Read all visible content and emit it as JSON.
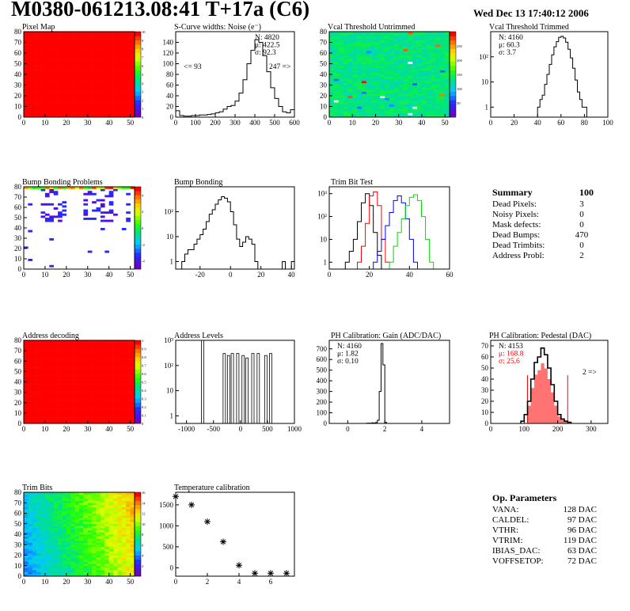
{
  "header": {
    "title": "M0380-061213.08:41 T+17a (C6)",
    "date": "Wed Dec 13 17:40:12 2006"
  },
  "summary": {
    "title": "Summary",
    "value": "100",
    "rows": [
      {
        "label": "Dead Pixels:",
        "value": "3"
      },
      {
        "label": "Noisy Pixels:",
        "value": "0"
      },
      {
        "label": "Mask defects:",
        "value": "0"
      },
      {
        "label": "Dead Bumps:",
        "value": "470"
      },
      {
        "label": "Dead Trimbits:",
        "value": "0"
      },
      {
        "label": "Address Probl:",
        "value": "2"
      }
    ]
  },
  "op_params": {
    "title": "Op. Parameters",
    "rows": [
      {
        "label": "VANA:",
        "value": "128 DAC"
      },
      {
        "label": "CALDEL:",
        "value": "97 DAC"
      },
      {
        "label": "VTHR:",
        "value": "96 DAC"
      },
      {
        "label": "VTRIM:",
        "value": "119 DAC"
      },
      {
        "label": "IBIAS_DAC:",
        "value": "63 DAC"
      },
      {
        "label": "VOFFSETOP:",
        "value": "72 DAC"
      }
    ]
  },
  "chart_data": [
    {
      "id": "pixel_map",
      "type": "heatmap",
      "title": "Pixel Map",
      "pattern": "uniform-max",
      "xlim": [
        0,
        52
      ],
      "ylim": [
        0,
        80
      ],
      "xticks": [
        0,
        10,
        20,
        30,
        40,
        50
      ],
      "yticks": [
        0,
        10,
        20,
        30,
        40,
        50,
        60,
        70,
        80
      ],
      "zlim": [
        0,
        10
      ],
      "zticks": [
        0,
        1,
        2,
        3,
        4,
        5,
        6,
        7,
        8,
        9,
        10
      ]
    },
    {
      "id": "s_curve",
      "type": "hist",
      "title": "S-Curve widths: Noise (e⁻)",
      "xlim": [
        0,
        600
      ],
      "ylim": [
        0,
        160
      ],
      "xticks": [
        0,
        100,
        200,
        300,
        400,
        500,
        600
      ],
      "yticks": [
        0,
        20,
        40,
        60,
        80,
        100,
        120,
        140
      ],
      "series": [
        {
          "name": "noise",
          "color": "#000000",
          "start": 0,
          "width": 20,
          "values": [
            12,
            3,
            2,
            2,
            3,
            3,
            4,
            4,
            5,
            6,
            8,
            10,
            15,
            20,
            22,
            30,
            45,
            70,
            100,
            125,
            145,
            140,
            115,
            85,
            55,
            35,
            20,
            10,
            8,
            14
          ]
        }
      ],
      "stats": {
        "pos": "top-right",
        "lines": [
          "N: 4820",
          "μ: 422.5",
          "σ: 92.3"
        ]
      },
      "underflow": "<= 93",
      "overflow": "247 =>"
    },
    {
      "id": "vcal_untrimmed",
      "type": "heatmap",
      "title": "Vcal Threshold Untrimmed",
      "pattern": "noisy-mid",
      "xlim": [
        0,
        52
      ],
      "ylim": [
        0,
        80
      ],
      "xticks": [
        0,
        10,
        20,
        30,
        40,
        50
      ],
      "yticks": [
        0,
        10,
        20,
        30,
        40,
        50,
        60,
        70,
        80
      ],
      "zlim": [
        0,
        300
      ],
      "zticks": [
        50,
        100,
        150,
        200,
        250
      ]
    },
    {
      "id": "vcal_trimmed",
      "type": "hist",
      "title": "Vcal Threshold Trimmed",
      "logy": true,
      "xlim": [
        0,
        100
      ],
      "ylim": [
        0.4,
        1000
      ],
      "xticks": [
        0,
        20,
        40,
        60,
        80,
        100
      ],
      "yticks": [
        1,
        10,
        100
      ],
      "yticklabels": [
        "1",
        "10",
        "10²"
      ],
      "series": [
        {
          "name": "vcal",
          "color": "#000000",
          "start": 40,
          "width": 2,
          "values": [
            1,
            2,
            3,
            8,
            20,
            50,
            120,
            250,
            400,
            600,
            650,
            560,
            380,
            200,
            90,
            35,
            12,
            4,
            2,
            1,
            1
          ]
        }
      ],
      "stats": {
        "pos": "top-left",
        "lines": [
          "N: 4160",
          "μ: 60.3",
          "σ:  3.7"
        ]
      }
    },
    {
      "id": "bump_problems",
      "type": "heatmap",
      "title": "Bump Bonding Problems",
      "pattern": "sparse",
      "xlim": [
        0,
        52
      ],
      "ylim": [
        0,
        80
      ],
      "xticks": [
        0,
        10,
        20,
        30,
        40,
        50
      ],
      "yticks": [
        0,
        10,
        20,
        30,
        40,
        50,
        60,
        70,
        80
      ],
      "zlim": [
        -5,
        5
      ],
      "zticks": [
        -4,
        -2,
        0,
        2,
        4
      ]
    },
    {
      "id": "bump_bonding",
      "type": "hist",
      "title": "Bump Bonding",
      "logy": true,
      "xlim": [
        -36,
        42
      ],
      "ylim": [
        0.5,
        1000
      ],
      "xticks": [
        -20,
        0,
        20,
        40
      ],
      "yticks": [
        1,
        10,
        100
      ],
      "yticklabels": [
        "1",
        "10",
        "10²"
      ],
      "series": [
        {
          "name": "bump",
          "color": "#000000",
          "start": -34,
          "width": 2,
          "values": [
            0,
            1,
            2,
            3,
            3,
            5,
            8,
            12,
            20,
            40,
            80,
            120,
            200,
            300,
            400,
            350,
            250,
            100,
            30,
            8,
            4,
            6,
            10,
            8,
            5,
            1,
            0,
            0,
            0,
            0,
            0,
            0,
            0,
            0,
            1,
            0,
            0,
            1
          ]
        }
      ]
    },
    {
      "id": "trim_bit_test",
      "type": "hist",
      "title": "Trim Bit Test",
      "logy": true,
      "xlim": [
        0,
        60
      ],
      "ylim": [
        0.5,
        2000
      ],
      "xticks": [
        0,
        20,
        40,
        60
      ],
      "yticks": [
        1,
        10,
        100,
        1000
      ],
      "yticklabels": [
        "1",
        "10",
        "10²",
        "10³"
      ],
      "series": [
        {
          "name": "trim-bit-0",
          "color": "#000000",
          "start": 8,
          "width": 2,
          "values": [
            1,
            3,
            10,
            60,
            400,
            1000,
            300,
            20,
            2
          ]
        },
        {
          "name": "trim-bit-1",
          "color": "#ff0000",
          "start": 14,
          "width": 2,
          "values": [
            1,
            5,
            50,
            800,
            1200,
            300,
            10,
            1
          ]
        },
        {
          "name": "trim-bit-2",
          "color": "#0000ff",
          "start": 22,
          "width": 2,
          "values": [
            1,
            3,
            10,
            40,
            150,
            500,
            800,
            400,
            80,
            10,
            1
          ]
        },
        {
          "name": "trim-bit-3",
          "color": "#00dd00",
          "start": 30,
          "width": 2,
          "values": [
            1,
            5,
            20,
            80,
            300,
            700,
            900,
            500,
            100,
            10,
            1
          ]
        }
      ]
    },
    {
      "id": "address_decoding",
      "type": "heatmap",
      "title": "Address decoding",
      "pattern": "uniform-max",
      "xlim": [
        0,
        52
      ],
      "ylim": [
        0,
        80
      ],
      "xticks": [
        0,
        10,
        20,
        30,
        40,
        50
      ],
      "yticks": [
        0,
        10,
        20,
        30,
        40,
        50,
        60,
        70,
        80
      ],
      "zlim": [
        0,
        1
      ],
      "zticks": [
        0,
        0.1,
        0.2,
        0.3,
        0.4,
        0.5,
        0.6,
        0.7,
        0.8,
        0.9,
        1
      ]
    },
    {
      "id": "address_levels",
      "type": "spikes",
      "title": "Address Levels",
      "logy": true,
      "xlim": [
        -1200,
        1000
      ],
      "ylim": [
        0.5,
        1000
      ],
      "xticks": [
        -1000,
        -500,
        0,
        500,
        1000
      ],
      "yticks": [
        1,
        10,
        100,
        1000
      ],
      "yticklabels": [
        "1",
        "10",
        "10²",
        "10³"
      ],
      "spikes": [
        {
          "x": -700,
          "h": 1000
        },
        {
          "x": -300,
          "h": 300
        },
        {
          "x": -220,
          "h": 250
        },
        {
          "x": -150,
          "h": 300
        },
        {
          "x": -50,
          "h": 300
        },
        {
          "x": 50,
          "h": 250
        },
        {
          "x": 120,
          "h": 200
        },
        {
          "x": 230,
          "h": 300
        },
        {
          "x": 330,
          "h": 300
        },
        {
          "x": 470,
          "h": 250
        },
        {
          "x": 560,
          "h": 300
        }
      ]
    },
    {
      "id": "ph_gain",
      "type": "hist",
      "title": "PH Calibration: Gain (ADC/DAC)",
      "xlim": [
        -1,
        5.5
      ],
      "ylim": [
        0,
        780
      ],
      "xticks": [
        0,
        2,
        4
      ],
      "yticks": [
        0,
        100,
        200,
        300,
        400,
        500,
        600,
        700
      ],
      "series": [
        {
          "name": "gain",
          "color": "#000000",
          "start": 1.0,
          "width": 0.1,
          "values": [
            2,
            3,
            2,
            5,
            4,
            8,
            30,
            300,
            750,
            550,
            10
          ]
        }
      ],
      "stats": {
        "pos": "top-left",
        "lines": [
          "N: 4160",
          "μ: 1.82",
          "σ: 0.10"
        ]
      }
    },
    {
      "id": "ph_pedestal",
      "type": "hist",
      "title": "PH Calibration: Pedestal (DAC)",
      "xlim": [
        0,
        350
      ],
      "ylim": [
        0,
        75
      ],
      "xticks": [
        0,
        100,
        200,
        300
      ],
      "yticks": [
        0,
        10,
        20,
        30,
        40,
        50,
        60,
        70
      ],
      "series": [
        {
          "name": "pedestal",
          "color": "#000000",
          "start": 90,
          "width": 10,
          "values": [
            2,
            8,
            20,
            40,
            55,
            60,
            68,
            62,
            50,
            35,
            20,
            8,
            4,
            2,
            1
          ]
        }
      ],
      "fit_range": [
        110,
        230
      ],
      "fit_color": "#ff0000",
      "stats": {
        "pos": "top-left",
        "lines": [
          "N: 4153",
          "μ: 168.8",
          "σ: 25.6"
        ],
        "colors": [
          "#000000",
          "#ff0000",
          "#ff0000"
        ]
      },
      "overflow": "2 =>"
    },
    {
      "id": "trim_bits",
      "type": "heatmap",
      "title": "Trim Bits",
      "pattern": "gradient",
      "xlim": [
        0,
        52
      ],
      "ylim": [
        0,
        80
      ],
      "xticks": [
        0,
        10,
        20,
        30,
        40,
        50
      ],
      "yticks": [
        0,
        10,
        20,
        30,
        40,
        50,
        60,
        70,
        80
      ],
      "zlim": [
        0,
        16
      ],
      "zticks": [
        2,
        4,
        6,
        8,
        10,
        12,
        14,
        16
      ]
    },
    {
      "id": "temperature",
      "type": "scatter",
      "title": "Temperature calibration",
      "xlim": [
        0,
        7.5
      ],
      "ylim": [
        -200,
        1800
      ],
      "xticks": [
        0,
        2,
        4,
        6
      ],
      "yticks": [
        0,
        500,
        1000,
        1500
      ],
      "points": [
        {
          "x": 0,
          "y": 1700
        },
        {
          "x": 1,
          "y": 1500
        },
        {
          "x": 2,
          "y": 1100
        },
        {
          "x": 3,
          "y": 620
        },
        {
          "x": 4,
          "y": 60
        },
        {
          "x": 5,
          "y": -130
        },
        {
          "x": 6,
          "y": -130
        },
        {
          "x": 7,
          "y": -130
        }
      ]
    }
  ]
}
